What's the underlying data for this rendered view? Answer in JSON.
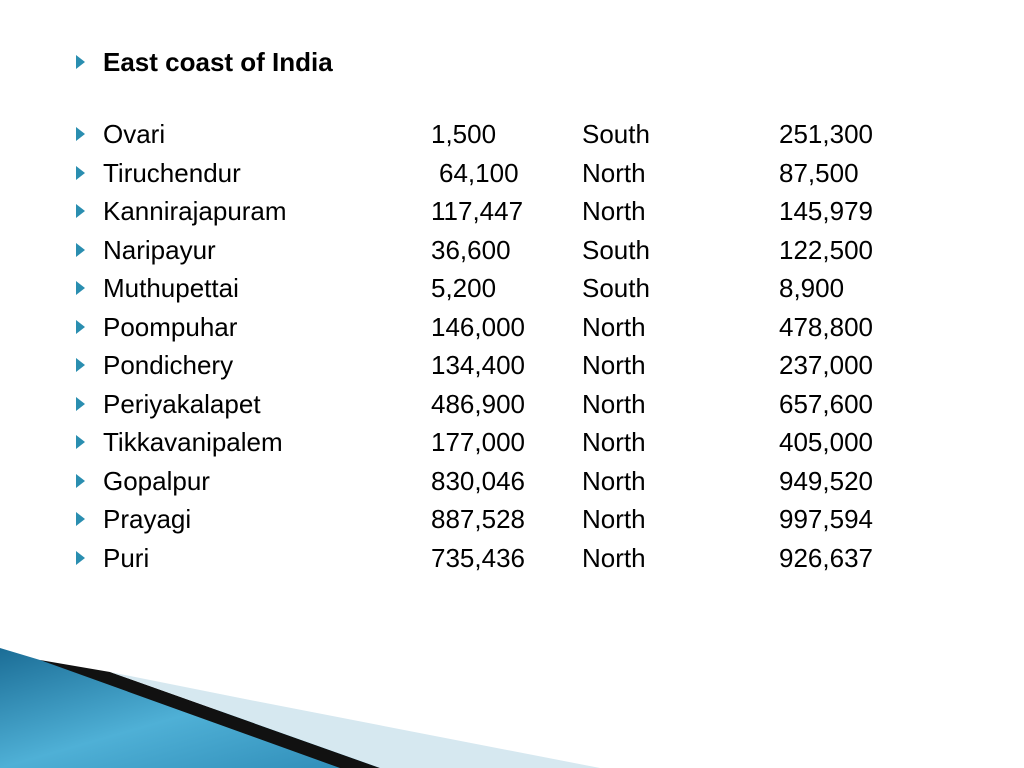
{
  "heading": "East coast of India",
  "rows": [
    [
      "Ovari",
      "1,500",
      "South",
      "251,300"
    ],
    [
      "Tiruchendur",
      "64,100",
      "North",
      "87,500"
    ],
    [
      "Kannirajapuram",
      "117,447",
      "North",
      "145,979"
    ],
    [
      "Naripayur",
      "36,600",
      "South",
      "122,500"
    ],
    [
      "Muthupettai",
      "5,200",
      "South",
      "8,900"
    ],
    [
      "Poompuhar",
      "146,000",
      "North",
      "478,800"
    ],
    [
      "Pondichery",
      "134,400",
      "North",
      "237,000"
    ],
    [
      "Periyakalapet",
      "486,900",
      "North",
      "657,600"
    ],
    [
      "Tikkavanipalem",
      "177,000",
      "North",
      "405,000"
    ],
    [
      "Gopalpur",
      "830,046",
      "North",
      "949,520"
    ],
    [
      "Prayagi",
      "887,528",
      "North",
      "997,594"
    ],
    [
      "Puri",
      "735,436",
      "North",
      "926,637"
    ]
  ]
}
